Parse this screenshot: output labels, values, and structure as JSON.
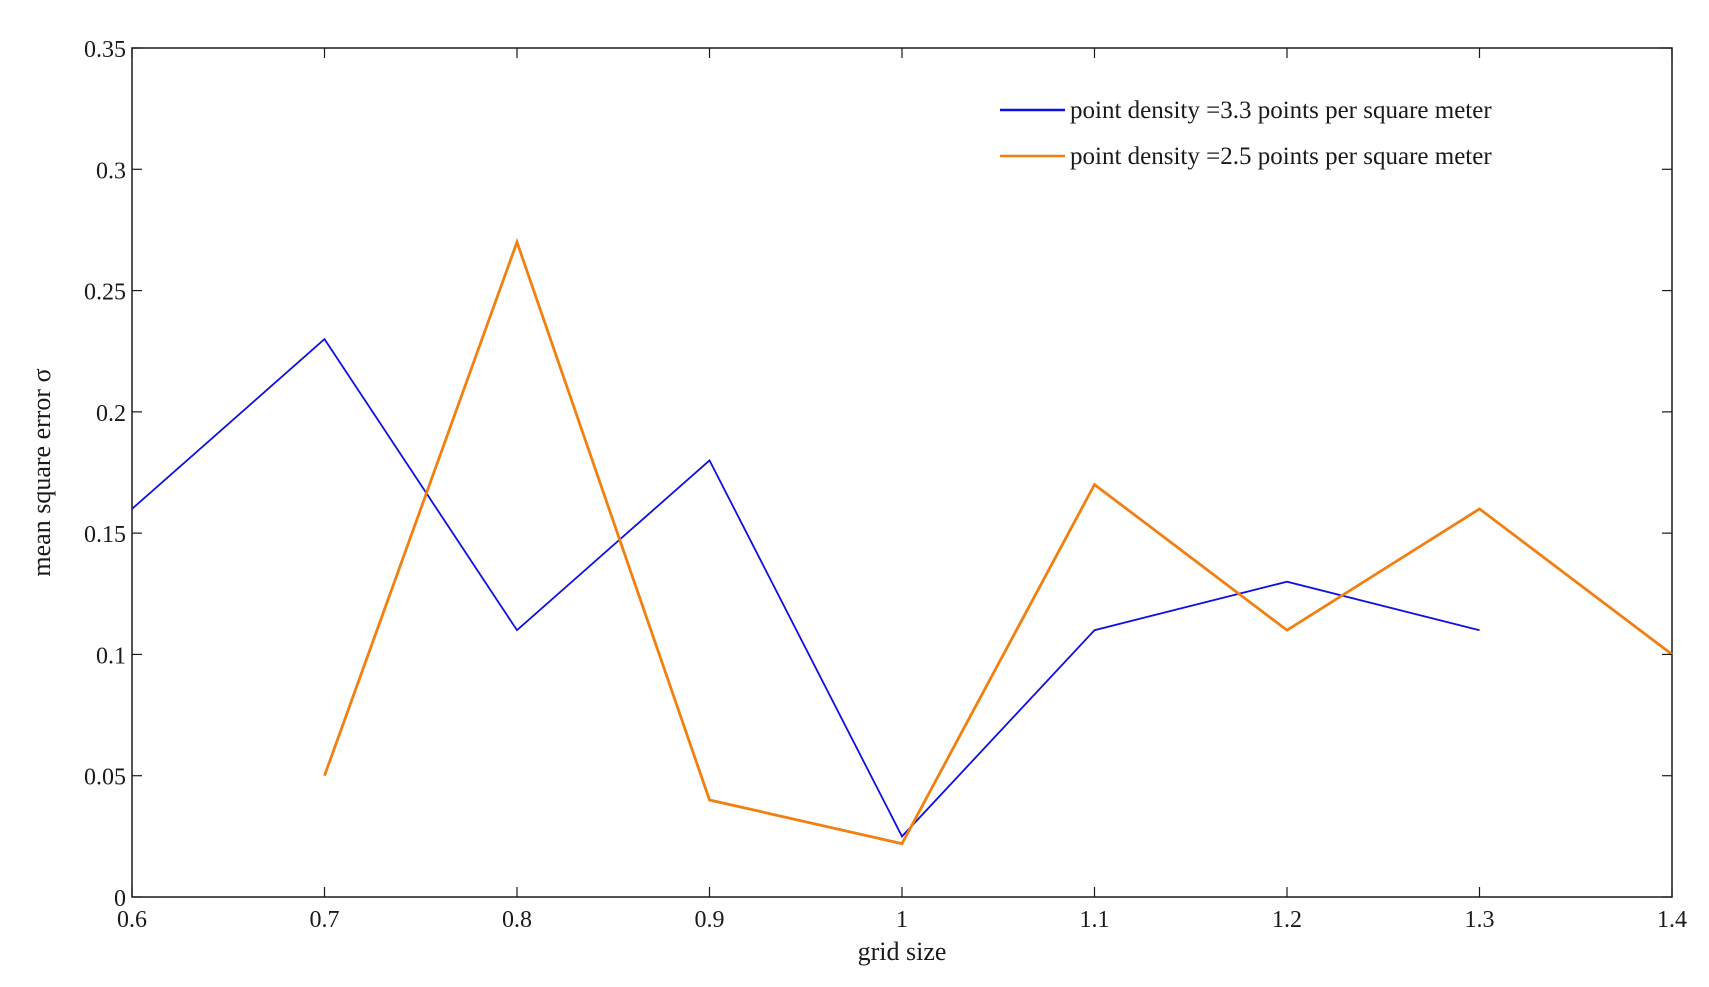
{
  "chart_data": {
    "type": "line",
    "title": "",
    "xlabel": "grid size",
    "ylabel": "mean square error σ",
    "xlim": [
      0.6,
      1.4
    ],
    "ylim": [
      0,
      0.35
    ],
    "grid": false,
    "legend_position": "top-right",
    "x_ticks": [
      0.6,
      0.7,
      0.8,
      0.9,
      1.0,
      1.1,
      1.2,
      1.3,
      1.4
    ],
    "x_tick_labels": [
      "0.6",
      "0.7",
      "0.8",
      "0.9",
      "1",
      "1.1",
      "1.2",
      "1.3",
      "1.4"
    ],
    "y_ticks": [
      0,
      0.05,
      0.1,
      0.15,
      0.2,
      0.25,
      0.3,
      0.35
    ],
    "y_tick_labels": [
      "0",
      "0.05",
      "0.1",
      "0.15",
      "0.2",
      "0.25",
      "0.3",
      "0.35"
    ],
    "series": [
      {
        "name": "point density =3.3 points per square meter",
        "color": "#1010e0",
        "x": [
          0.6,
          0.7,
          0.8,
          0.9,
          1.0,
          1.1,
          1.2,
          1.3
        ],
        "y": [
          0.16,
          0.23,
          0.11,
          0.18,
          0.025,
          0.11,
          0.13,
          0.11
        ]
      },
      {
        "name": "point density =2.5 points per square meter",
        "color": "#f08010",
        "x": [
          0.7,
          0.8,
          0.9,
          1.0,
          1.1,
          1.2,
          1.3,
          1.4
        ],
        "y": [
          0.05,
          0.27,
          0.04,
          0.022,
          0.17,
          0.11,
          0.16,
          0.1
        ]
      }
    ]
  }
}
